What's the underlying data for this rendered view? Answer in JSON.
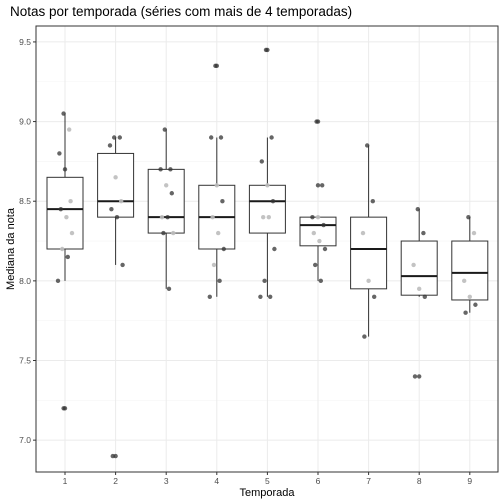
{
  "chart_data": {
    "type": "boxplot",
    "title": "Notas por temporada (séries com mais de 4 temporadas)",
    "xlabel": "Temporada",
    "ylabel": "Mediana da nota",
    "categories": [
      "1",
      "2",
      "3",
      "4",
      "5",
      "6",
      "7",
      "8",
      "9"
    ],
    "ylim": [
      6.8,
      9.6
    ],
    "yticks": [
      {
        "value": 7.0,
        "label": "7.0"
      },
      {
        "value": 7.5,
        "label": "7.5"
      },
      {
        "value": 8.0,
        "label": "8.0"
      },
      {
        "value": 8.5,
        "label": "8.5"
      },
      {
        "value": 9.0,
        "label": "9.0"
      },
      {
        "value": 9.5,
        "label": "9.5"
      }
    ],
    "grid": true,
    "boxes": [
      {
        "category": "1",
        "q1": 8.2,
        "median": 8.45,
        "q3": 8.65,
        "whisker_low": 8.0,
        "whisker_high": 9.05,
        "outliers": [
          7.2
        ]
      },
      {
        "category": "2",
        "q1": 8.4,
        "median": 8.5,
        "q3": 8.8,
        "whisker_low": 8.1,
        "whisker_high": 8.9,
        "outliers": [
          6.9
        ]
      },
      {
        "category": "3",
        "q1": 8.3,
        "median": 8.4,
        "q3": 8.7,
        "whisker_low": 7.95,
        "whisker_high": 8.95,
        "outliers": []
      },
      {
        "category": "4",
        "q1": 8.2,
        "median": 8.4,
        "q3": 8.6,
        "whisker_low": 7.9,
        "whisker_high": 8.9,
        "outliers": [
          9.35
        ]
      },
      {
        "category": "5",
        "q1": 8.3,
        "median": 8.5,
        "q3": 8.6,
        "whisker_low": 7.9,
        "whisker_high": 8.9,
        "outliers": [
          9.45
        ]
      },
      {
        "category": "6",
        "q1": 8.22,
        "median": 8.35,
        "q3": 8.4,
        "whisker_low": 8.0,
        "whisker_high": 8.4,
        "outliers": [
          9.0,
          8.6
        ]
      },
      {
        "category": "7",
        "q1": 7.95,
        "median": 8.2,
        "q3": 8.4,
        "whisker_low": 7.65,
        "whisker_high": 8.85,
        "outliers": []
      },
      {
        "category": "8",
        "q1": 7.91,
        "median": 8.03,
        "q3": 8.25,
        "whisker_low": 7.9,
        "whisker_high": 8.45,
        "outliers": [
          7.4
        ]
      },
      {
        "category": "9",
        "q1": 7.88,
        "median": 8.05,
        "q3": 8.25,
        "whisker_low": 7.8,
        "whisker_high": 8.4,
        "outliers": []
      }
    ],
    "points": [
      {
        "x": 1,
        "y": 9.05,
        "shade": "dark"
      },
      {
        "x": 1,
        "y": 8.95,
        "shade": "light"
      },
      {
        "x": 1,
        "y": 8.8,
        "shade": "dark"
      },
      {
        "x": 1,
        "y": 8.7,
        "shade": "dark"
      },
      {
        "x": 1,
        "y": 8.5,
        "shade": "light"
      },
      {
        "x": 1,
        "y": 8.45,
        "shade": "dark"
      },
      {
        "x": 1,
        "y": 8.4,
        "shade": "light"
      },
      {
        "x": 1,
        "y": 8.3,
        "shade": "light"
      },
      {
        "x": 1,
        "y": 8.2,
        "shade": "light"
      },
      {
        "x": 1,
        "y": 8.15,
        "shade": "dark"
      },
      {
        "x": 1,
        "y": 8.0,
        "shade": "dark"
      },
      {
        "x": 1,
        "y": 7.2,
        "shade": "dark"
      },
      {
        "x": 2,
        "y": 8.9,
        "shade": "dark"
      },
      {
        "x": 2,
        "y": 8.9,
        "shade": "dark"
      },
      {
        "x": 2,
        "y": 8.85,
        "shade": "dark"
      },
      {
        "x": 2,
        "y": 8.65,
        "shade": "light"
      },
      {
        "x": 2,
        "y": 8.5,
        "shade": "light"
      },
      {
        "x": 2,
        "y": 8.45,
        "shade": "dark"
      },
      {
        "x": 2,
        "y": 8.4,
        "shade": "dark"
      },
      {
        "x": 2,
        "y": 8.1,
        "shade": "dark"
      },
      {
        "x": 2,
        "y": 6.9,
        "shade": "dark"
      },
      {
        "x": 3,
        "y": 8.95,
        "shade": "dark"
      },
      {
        "x": 3,
        "y": 8.7,
        "shade": "dark"
      },
      {
        "x": 3,
        "y": 8.7,
        "shade": "dark"
      },
      {
        "x": 3,
        "y": 8.6,
        "shade": "light"
      },
      {
        "x": 3,
        "y": 8.55,
        "shade": "dark"
      },
      {
        "x": 3,
        "y": 8.4,
        "shade": "light"
      },
      {
        "x": 3,
        "y": 8.4,
        "shade": "dark"
      },
      {
        "x": 3,
        "y": 8.3,
        "shade": "light"
      },
      {
        "x": 3,
        "y": 8.3,
        "shade": "dark"
      },
      {
        "x": 3,
        "y": 7.95,
        "shade": "dark"
      },
      {
        "x": 4,
        "y": 9.35,
        "shade": "dark"
      },
      {
        "x": 4,
        "y": 8.9,
        "shade": "dark"
      },
      {
        "x": 4,
        "y": 8.9,
        "shade": "dark"
      },
      {
        "x": 4,
        "y": 8.6,
        "shade": "light"
      },
      {
        "x": 4,
        "y": 8.5,
        "shade": "dark"
      },
      {
        "x": 4,
        "y": 8.4,
        "shade": "light"
      },
      {
        "x": 4,
        "y": 8.3,
        "shade": "light"
      },
      {
        "x": 4,
        "y": 8.2,
        "shade": "dark"
      },
      {
        "x": 4,
        "y": 8.1,
        "shade": "light"
      },
      {
        "x": 4,
        "y": 8.0,
        "shade": "dark"
      },
      {
        "x": 4,
        "y": 7.9,
        "shade": "dark"
      },
      {
        "x": 5,
        "y": 9.45,
        "shade": "dark"
      },
      {
        "x": 5,
        "y": 8.9,
        "shade": "dark"
      },
      {
        "x": 5,
        "y": 8.75,
        "shade": "dark"
      },
      {
        "x": 5,
        "y": 8.6,
        "shade": "light"
      },
      {
        "x": 5,
        "y": 8.5,
        "shade": "dark"
      },
      {
        "x": 5,
        "y": 8.4,
        "shade": "light"
      },
      {
        "x": 5,
        "y": 8.4,
        "shade": "light"
      },
      {
        "x": 5,
        "y": 8.2,
        "shade": "dark"
      },
      {
        "x": 5,
        "y": 8.0,
        "shade": "dark"
      },
      {
        "x": 5,
        "y": 7.9,
        "shade": "dark"
      },
      {
        "x": 5,
        "y": 7.9,
        "shade": "dark"
      },
      {
        "x": 6,
        "y": 9.0,
        "shade": "dark"
      },
      {
        "x": 6,
        "y": 8.6,
        "shade": "dark"
      },
      {
        "x": 6,
        "y": 8.4,
        "shade": "dark"
      },
      {
        "x": 6,
        "y": 8.4,
        "shade": "light"
      },
      {
        "x": 6,
        "y": 8.35,
        "shade": "dark"
      },
      {
        "x": 6,
        "y": 8.3,
        "shade": "light"
      },
      {
        "x": 6,
        "y": 8.25,
        "shade": "light"
      },
      {
        "x": 6,
        "y": 8.2,
        "shade": "dark"
      },
      {
        "x": 6,
        "y": 8.1,
        "shade": "dark"
      },
      {
        "x": 6,
        "y": 8.0,
        "shade": "dark"
      },
      {
        "x": 7,
        "y": 8.85,
        "shade": "dark"
      },
      {
        "x": 7,
        "y": 8.5,
        "shade": "dark"
      },
      {
        "x": 7,
        "y": 8.3,
        "shade": "light"
      },
      {
        "x": 7,
        "y": 8.0,
        "shade": "light"
      },
      {
        "x": 7,
        "y": 7.9,
        "shade": "dark"
      },
      {
        "x": 7,
        "y": 7.65,
        "shade": "dark"
      },
      {
        "x": 8,
        "y": 8.45,
        "shade": "dark"
      },
      {
        "x": 8,
        "y": 8.3,
        "shade": "dark"
      },
      {
        "x": 8,
        "y": 8.1,
        "shade": "light"
      },
      {
        "x": 8,
        "y": 7.95,
        "shade": "light"
      },
      {
        "x": 8,
        "y": 7.9,
        "shade": "dark"
      },
      {
        "x": 8,
        "y": 7.4,
        "shade": "dark"
      },
      {
        "x": 9,
        "y": 8.4,
        "shade": "dark"
      },
      {
        "x": 9,
        "y": 8.3,
        "shade": "light"
      },
      {
        "x": 9,
        "y": 8.0,
        "shade": "light"
      },
      {
        "x": 9,
        "y": 7.9,
        "shade": "light"
      },
      {
        "x": 9,
        "y": 7.85,
        "shade": "dark"
      },
      {
        "x": 9,
        "y": 7.8,
        "shade": "dark"
      }
    ],
    "colors": {
      "box_stroke": "#333333",
      "median": "#1a1a1a",
      "point_dark": "#333333",
      "point_light": "#bdbdbd",
      "grid_major": "#ebebeb",
      "grid_minor": "#f5f5f5",
      "panel_border": "#333333",
      "tick_label": "#4d4d4d"
    }
  }
}
